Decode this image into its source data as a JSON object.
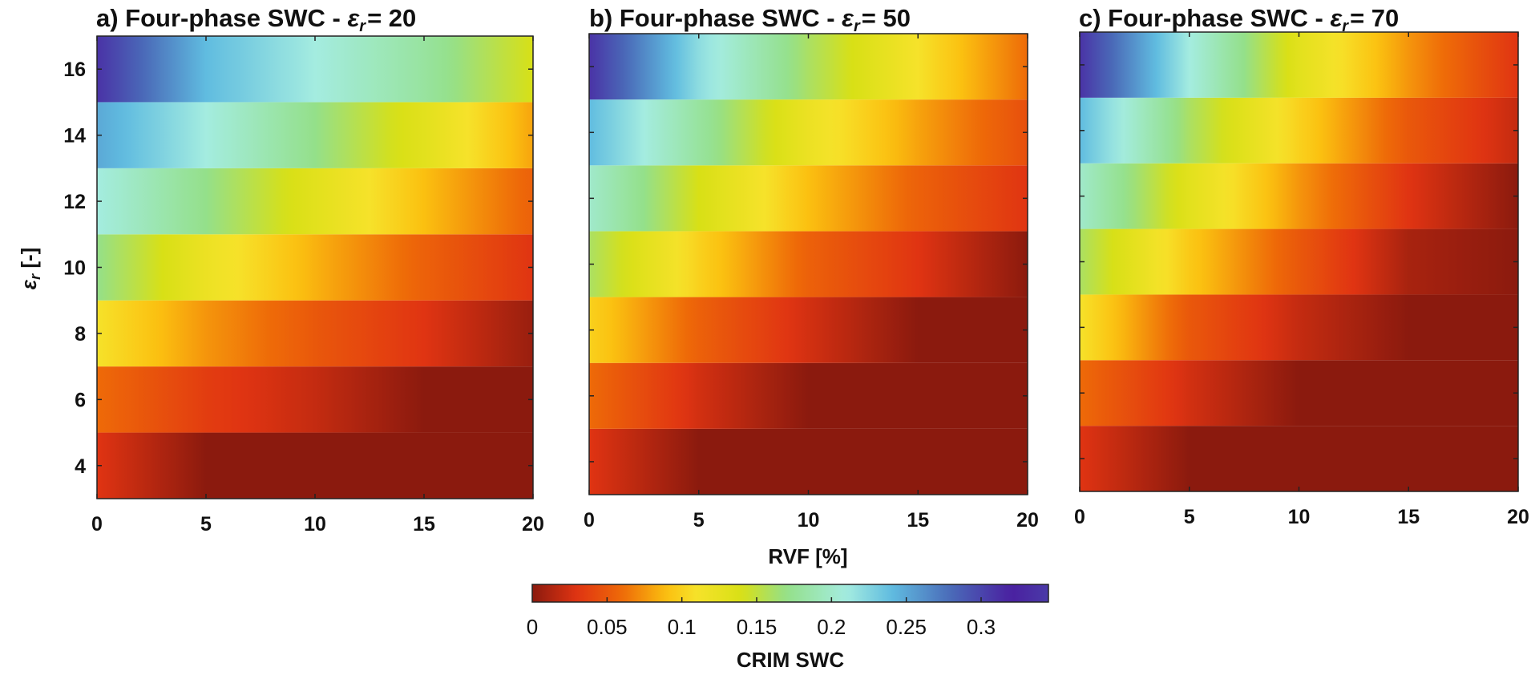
{
  "chart_data": {
    "type": "heatmap",
    "panels": [
      {
        "title_prefix": "a) Four-phase SWC - ",
        "title_symbol": "ε",
        "title_subscript": "r",
        "title_suffix": "= 20",
        "fluid_permittivity": 20,
        "x": [
          0,
          5,
          10,
          15,
          20
        ],
        "y": [
          4,
          6,
          8,
          10,
          12,
          14,
          16
        ],
        "values": [
          [
            0.03,
            0.0,
            0.0,
            0.0,
            0.0
          ],
          [
            0.06,
            0.035,
            0.02,
            0.0,
            0.0
          ],
          [
            0.11,
            0.075,
            0.05,
            0.03,
            0.005
          ],
          [
            0.17,
            0.12,
            0.085,
            0.055,
            0.03
          ],
          [
            0.21,
            0.17,
            0.13,
            0.09,
            0.055
          ],
          [
            0.25,
            0.21,
            0.17,
            0.13,
            0.08
          ],
          [
            0.31,
            0.24,
            0.21,
            0.18,
            0.14
          ]
        ],
        "show_yticks": true
      },
      {
        "title_prefix": "b) Four-phase SWC - ",
        "title_symbol": "ε",
        "title_subscript": "r",
        "title_suffix": "= 50",
        "fluid_permittivity": 50,
        "x": [
          0,
          5,
          10,
          15,
          20
        ],
        "y": [
          4,
          6,
          8,
          10,
          12,
          14,
          16
        ],
        "values": [
          [
            0.03,
            0.0,
            0.0,
            0.0,
            0.0
          ],
          [
            0.06,
            0.025,
            0.0,
            0.0,
            0.0
          ],
          [
            0.1,
            0.055,
            0.025,
            0.0,
            0.0
          ],
          [
            0.16,
            0.1,
            0.055,
            0.03,
            0.0
          ],
          [
            0.2,
            0.14,
            0.09,
            0.055,
            0.03
          ],
          [
            0.24,
            0.18,
            0.12,
            0.08,
            0.045
          ],
          [
            0.31,
            0.22,
            0.16,
            0.11,
            0.06
          ]
        ],
        "show_yticks": false
      },
      {
        "title_prefix": "c) Four-phase SWC - ",
        "title_symbol": "ε",
        "title_subscript": "r",
        "title_suffix": "= 70",
        "fluid_permittivity": 70,
        "x": [
          0,
          5,
          10,
          15,
          20
        ],
        "y": [
          4,
          6,
          8,
          10,
          12,
          14,
          16
        ],
        "values": [
          [
            0.03,
            0.0,
            0.0,
            0.0,
            0.0
          ],
          [
            0.06,
            0.025,
            0.0,
            0.0,
            0.0
          ],
          [
            0.11,
            0.05,
            0.02,
            0.0,
            0.0
          ],
          [
            0.16,
            0.095,
            0.05,
            0.01,
            0.0
          ],
          [
            0.2,
            0.13,
            0.075,
            0.03,
            0.0
          ],
          [
            0.24,
            0.16,
            0.1,
            0.05,
            0.02
          ],
          [
            0.31,
            0.21,
            0.13,
            0.075,
            0.03
          ]
        ],
        "show_yticks": false
      }
    ],
    "xlabel": "RVF [%]",
    "ylabel_symbol": "ε",
    "ylabel_subscript": "r",
    "ylabel_suffix": " [-]",
    "xlim": [
      0,
      20
    ],
    "ylim": [
      3,
      17
    ],
    "xticks": [
      0,
      5,
      10,
      15,
      20
    ],
    "xtick_labels": [
      "0",
      "5",
      "10",
      "15",
      "20"
    ],
    "yticks": [
      4,
      6,
      8,
      10,
      12,
      14,
      16
    ],
    "ytick_labels": [
      "4",
      "6",
      "8",
      "10",
      "12",
      "14",
      "16"
    ],
    "grid": false,
    "colorbar": {
      "label": "CRIM SWC",
      "orientation": "horizontal",
      "placement": "bottom-center",
      "range": [
        0,
        0.345
      ],
      "ticks": [
        0,
        0.05,
        0.1,
        0.15,
        0.2,
        0.25,
        0.3
      ],
      "tick_labels": [
        "0",
        "0.05",
        "0.1",
        "0.15",
        "0.2",
        "0.25",
        "0.3"
      ],
      "colormap_stops": [
        [
          0.0,
          "#8b1a0e"
        ],
        [
          0.03,
          "#e03412"
        ],
        [
          0.06,
          "#ee6a08"
        ],
        [
          0.09,
          "#fbc010"
        ],
        [
          0.11,
          "#f6e22a"
        ],
        [
          0.14,
          "#d8e016"
        ],
        [
          0.17,
          "#94e08a"
        ],
        [
          0.21,
          "#a4ece0"
        ],
        [
          0.24,
          "#60bce0"
        ],
        [
          0.28,
          "#4a6ab8"
        ],
        [
          0.32,
          "#4a20a0"
        ],
        [
          0.345,
          "#4a3aa8"
        ]
      ]
    }
  }
}
